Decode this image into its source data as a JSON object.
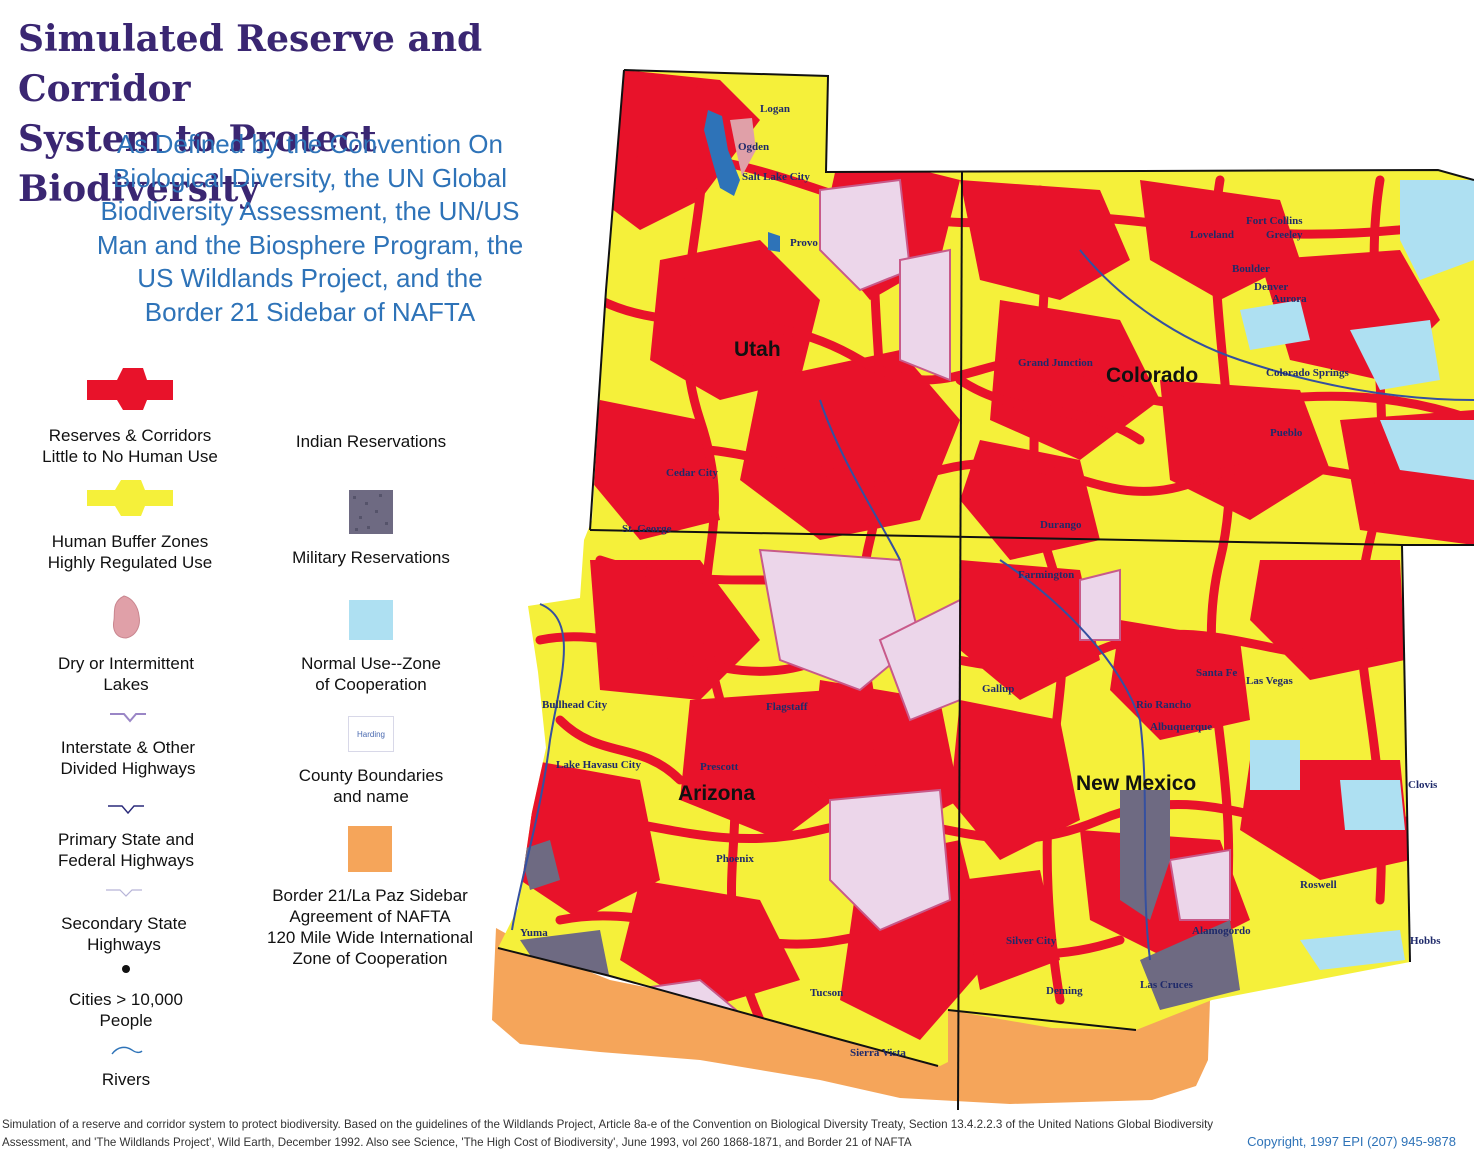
{
  "title": {
    "line1": "Simulated Reserve and Corridor",
    "line2": "System to Protect Biodiversity"
  },
  "subtitle": {
    "line1": "As Defined by the Convention On",
    "line2": "Biological Diversity, the UN Global",
    "line3": "Biodiversity Assessment, the UN/US",
    "line4": "Man and the Biosphere Program, the",
    "line5": "US Wildlands Project, and the",
    "line6": "Border 21 Sidebar of NAFTA"
  },
  "legend": {
    "reserves": {
      "line1": "Reserves & Corridors",
      "line2": "Little to No Human Use",
      "color": "#e8122a"
    },
    "buffer": {
      "line1": "Human Buffer Zones",
      "line2": "Highly Regulated Use",
      "color": "#f5f03a"
    },
    "lakes": {
      "line1": "Dry or Intermittent",
      "line2": "Lakes",
      "color": "#e0a0a8"
    },
    "interstate": {
      "line1": "Interstate & Other",
      "line2": "Divided Highways"
    },
    "primary": {
      "line1": "Primary State and",
      "line2": "Federal Highways"
    },
    "secondary": {
      "line1": "Secondary State",
      "line2": "Highways"
    },
    "cities": {
      "line1": "Cities > 10,000",
      "line2": "People"
    },
    "rivers": {
      "line1": "Rivers"
    },
    "indian": {
      "line1": "Indian Reservations",
      "color": "#ecd6ea"
    },
    "military": {
      "line1": "Military Reservations",
      "color": "#6e6a82"
    },
    "normal": {
      "line1": "Normal Use--Zone",
      "line2": "of Cooperation",
      "color": "#aee0f2"
    },
    "county": {
      "line1": "County Boundaries",
      "line2": "and name",
      "sample": "Harding"
    },
    "border21": {
      "line1": "Border 21/La Paz Sidebar",
      "line2": "Agreement of NAFTA",
      "line3": "120 Mile Wide International",
      "line4": "Zone of Cooperation",
      "color": "#f5a55a"
    }
  },
  "states": {
    "utah": "Utah",
    "colorado": "Colorado",
    "arizona": "Arizona",
    "new_mexico": "New Mexico"
  },
  "cities": {
    "fort_collins": "Fort Collins",
    "greeley": "Greeley",
    "loveland": "Loveland",
    "boulder": "Boulder",
    "denver": "Denver",
    "aurora": "Aurora",
    "colorado_springs": "Colorado Springs",
    "pueblo": "Pueblo",
    "grand_junction": "Grand Junction",
    "durango": "Durango",
    "farmington": "Farmington",
    "gallup": "Gallup",
    "santa_fe": "Santa Fe",
    "las_vegas": "Las Vegas",
    "rio_rancho": "Rio Rancho",
    "albuquerque": "Albuquerque",
    "clovis": "Clovis",
    "roswell": "Roswell",
    "alamogordo": "Alamogordo",
    "las_cruces": "Las Cruces",
    "deming": "Deming",
    "silver_city": "Silver City",
    "hobbs": "Hobbs",
    "tucson": "Tucson",
    "sierra_vista": "Sierra Vista",
    "phoenix": "Phoenix",
    "flagstaff": "Flagstaff",
    "prescott": "Prescott",
    "lake_havasu_city": "Lake Havasu City",
    "bullhead_city": "Bullhead City",
    "yuma": "Yuma",
    "st_george": "St. George",
    "cedar_city": "Cedar City",
    "provo": "Provo",
    "salt_lake": "Salt Lake City",
    "ogden": "Ogden",
    "logan": "Logan"
  },
  "footer": {
    "line1": "Simulation of a reserve and corridor system to protect biodiversity. Based on the guidelines of the Wildlands Project, Article 8a-e of the Convention on Biological Diversity Treaty, Section 13.4.2.2.3 of the United Nations Global Biodiversity",
    "line2": "Assessment, and 'The Wildlands Project', Wild Earth, December 1992. Also see Science, 'The High Cost of Biodiversity', June 1993, vol 260 1868-1871, and Border 21 of NAFTA"
  },
  "copyright": "Copyright, 1997 EPI (207) 945-9878"
}
